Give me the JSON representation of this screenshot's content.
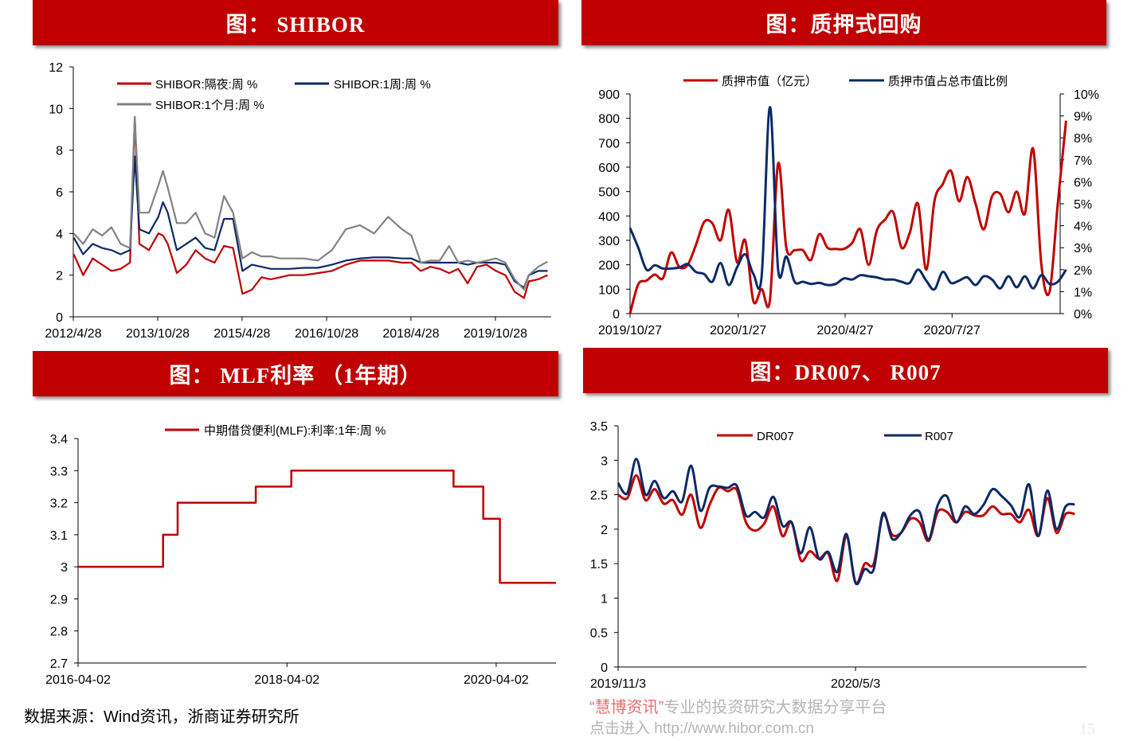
{
  "panels": {
    "shibor_title": "图： SHIBOR",
    "repo_title": "图：质押式回购",
    "mlf_title": "图： MLF利率 （1年期）",
    "dr_title": "图：DR007、 R007"
  },
  "footer": {
    "source": "数据来源：Wind资讯，浙商证券研究所",
    "watermark_brand": "“慧博资讯”",
    "watermark_slogan": "专业的投资研究大数据分享平台",
    "watermark_link": "点击进入 http://www.hibor.com.cn",
    "page_number": "15"
  },
  "colors": {
    "red": "#c00000",
    "navy": "#0c2a66",
    "gray": "#828282",
    "header": "#c00000"
  },
  "chart_data": [
    {
      "id": "shibor",
      "type": "line",
      "xlim": [
        "2012-04-28",
        "2020-10-24"
      ],
      "ylim": [
        0,
        12
      ],
      "yticks": [
        0,
        2,
        4,
        6,
        8,
        10,
        12
      ],
      "xticks": [
        "2012/4/28",
        "2013/10/28",
        "2015/4/28",
        "2016/10/28",
        "2018/4/28",
        "2019/10/28"
      ],
      "legend_position": "top-left",
      "grid": false,
      "x": [
        "2012-05",
        "2012-07",
        "2012-09",
        "2012-11",
        "2013-01",
        "2013-03",
        "2013-05",
        "2013-06",
        "2013-07",
        "2013-09",
        "2013-11",
        "2013-12",
        "2014-01",
        "2014-03",
        "2014-05",
        "2014-07",
        "2014-09",
        "2014-11",
        "2015-01",
        "2015-03",
        "2015-05",
        "2015-07",
        "2015-09",
        "2015-11",
        "2016-01",
        "2016-03",
        "2016-06",
        "2016-09",
        "2016-12",
        "2017-03",
        "2017-06",
        "2017-09",
        "2017-12",
        "2018-03",
        "2018-05",
        "2018-07",
        "2018-09",
        "2018-11",
        "2019-01",
        "2019-03",
        "2019-05",
        "2019-07",
        "2019-09",
        "2019-11",
        "2020-01",
        "2020-03",
        "2020-05",
        "2020-06",
        "2020-08",
        "2020-10"
      ],
      "series": [
        {
          "name": "SHIBOR:隔夜:周 %",
          "color": "#c00000",
          "values": [
            3.0,
            2.0,
            2.8,
            2.5,
            2.2,
            2.3,
            2.6,
            9.6,
            3.5,
            3.2,
            4.0,
            3.9,
            3.5,
            2.1,
            2.5,
            3.2,
            2.8,
            2.6,
            3.4,
            3.3,
            1.1,
            1.3,
            1.9,
            1.8,
            1.9,
            2.0,
            2.0,
            2.1,
            2.2,
            2.5,
            2.7,
            2.7,
            2.7,
            2.6,
            2.6,
            2.2,
            2.4,
            2.3,
            2.1,
            2.3,
            1.6,
            2.4,
            2.5,
            2.2,
            2.0,
            1.2,
            0.9,
            1.7,
            1.8,
            2.0
          ]
        },
        {
          "name": "SHIBOR:1周:周 %",
          "color": "#0c2a66",
          "values": [
            3.8,
            3.0,
            3.5,
            3.3,
            3.2,
            3.0,
            3.2,
            7.7,
            4.2,
            4.0,
            4.8,
            5.5,
            5.0,
            3.2,
            3.5,
            3.8,
            3.3,
            3.2,
            4.7,
            4.7,
            2.2,
            2.5,
            2.4,
            2.3,
            2.3,
            2.3,
            2.35,
            2.35,
            2.5,
            2.7,
            2.8,
            2.85,
            2.85,
            2.8,
            2.8,
            2.6,
            2.6,
            2.6,
            2.6,
            2.6,
            2.5,
            2.6,
            2.6,
            2.6,
            2.5,
            1.7,
            1.4,
            2.0,
            2.2,
            2.2
          ]
        },
        {
          "name": "SHIBOR:1个月:周 %",
          "color": "#828282",
          "values": [
            4.0,
            3.5,
            4.2,
            3.9,
            4.3,
            3.5,
            3.3,
            9.6,
            5.0,
            5.0,
            6.3,
            7.0,
            6.2,
            4.5,
            4.5,
            5.0,
            4.0,
            3.8,
            5.8,
            5.0,
            2.8,
            3.1,
            2.9,
            2.9,
            2.8,
            2.8,
            2.8,
            2.7,
            3.2,
            4.2,
            4.4,
            4.0,
            4.8,
            4.2,
            3.9,
            2.6,
            2.7,
            2.7,
            3.4,
            2.6,
            2.7,
            2.6,
            2.7,
            2.8,
            2.6,
            1.8,
            1.3,
            2.0,
            2.4,
            2.65
          ]
        }
      ]
    },
    {
      "id": "repo",
      "type": "line",
      "xlim": [
        "2019-10-27",
        "2020-10-27"
      ],
      "ylim": [
        0,
        900
      ],
      "ylim_right": [
        0,
        10
      ],
      "yticks": [
        0,
        100,
        200,
        300,
        400,
        500,
        600,
        700,
        800,
        900
      ],
      "yticks_right": [
        "0%",
        "1%",
        "2%",
        "3%",
        "4%",
        "5%",
        "6%",
        "7%",
        "8%",
        "9%",
        "10%"
      ],
      "xticks": [
        "2019/10/27",
        "2020/1/27",
        "2020/4/27",
        "2020/7/27"
      ],
      "legend_position": "top",
      "grid": false,
      "x": [
        "2019-10-27",
        "2019-11-03",
        "2019-11-10",
        "2019-11-17",
        "2019-11-24",
        "2019-12-01",
        "2019-12-08",
        "2019-12-15",
        "2019-12-22",
        "2019-12-29",
        "2020-01-05",
        "2020-01-12",
        "2020-01-19",
        "2020-01-26",
        "2020-02-02",
        "2020-02-09",
        "2020-02-16",
        "2020-02-23",
        "2020-03-01",
        "2020-03-08",
        "2020-03-15",
        "2020-03-22",
        "2020-03-29",
        "2020-04-05",
        "2020-04-12",
        "2020-04-19",
        "2020-04-26",
        "2020-05-03",
        "2020-05-10",
        "2020-05-17",
        "2020-05-24",
        "2020-05-31",
        "2020-06-07",
        "2020-06-14",
        "2020-06-21",
        "2020-06-28",
        "2020-07-05",
        "2020-07-12",
        "2020-07-19",
        "2020-07-26",
        "2020-08-02",
        "2020-08-09",
        "2020-08-16",
        "2020-08-23",
        "2020-08-30",
        "2020-09-06",
        "2020-09-13",
        "2020-09-20",
        "2020-09-27",
        "2020-10-04",
        "2020-10-11",
        "2020-10-18",
        "2020-10-25",
        "2020-11-01"
      ],
      "series": [
        {
          "name": "质押市值（亿元）",
          "axis": "left",
          "color": "#c00000",
          "values": [
            0,
            120,
            135,
            160,
            145,
            250,
            190,
            200,
            280,
            375,
            370,
            300,
            425,
            210,
            300,
            50,
            100,
            55,
            615,
            270,
            260,
            260,
            220,
            325,
            270,
            265,
            265,
            290,
            345,
            200,
            340,
            385,
            415,
            270,
            330,
            450,
            180,
            460,
            530,
            585,
            460,
            560,
            450,
            345,
            480,
            490,
            415,
            500,
            410,
            675,
            200,
            90,
            450,
            790
          ]
        },
        {
          "name": "质押市值占总市值比例",
          "axis": "right",
          "unit": "%",
          "color": "#0c2a66",
          "values": [
            3.9,
            3.0,
            2.0,
            2.2,
            2.05,
            2.05,
            2.1,
            2.25,
            1.9,
            1.8,
            1.45,
            2.3,
            1.3,
            2.1,
            2.7,
            1.8,
            1.7,
            9.4,
            2.0,
            2.6,
            1.45,
            1.45,
            1.35,
            1.4,
            1.3,
            1.35,
            1.6,
            1.55,
            1.75,
            1.7,
            1.65,
            1.55,
            1.55,
            1.45,
            1.4,
            2.0,
            1.5,
            1.1,
            1.9,
            1.4,
            1.5,
            1.65,
            1.3,
            1.7,
            1.55,
            1.15,
            1.7,
            1.2,
            1.7,
            1.15,
            1.75,
            1.35,
            1.45,
            2.0
          ]
        }
      ]
    },
    {
      "id": "mlf",
      "type": "line",
      "xlim": [
        "2016-04-02",
        "2020-10-28"
      ],
      "ylim": [
        2.7,
        3.4
      ],
      "yticks": [
        "2.7",
        "2.8",
        "2.9",
        "3",
        "3.1",
        "3.2",
        "3.3",
        "3.4"
      ],
      "xticks": [
        "2016-04-02",
        "2018-04-02",
        "2020-04-02"
      ],
      "legend_position": "top",
      "grid": false,
      "x": [
        "2016-04-02",
        "2017-01-24",
        "2017-01-24",
        "2017-03-16",
        "2017-03-16",
        "2017-12-14",
        "2017-12-14",
        "2018-04-17",
        "2018-04-17",
        "2019-11-05",
        "2019-11-05",
        "2020-02-17",
        "2020-02-17",
        "2020-04-15",
        "2020-04-15",
        "2020-10-28"
      ],
      "series": [
        {
          "name": "中期借贷便利(MLF):利率:1年:周 %",
          "color": "#c00000",
          "values": [
            3.0,
            3.0,
            3.1,
            3.1,
            3.2,
            3.2,
            3.25,
            3.25,
            3.3,
            3.3,
            3.25,
            3.25,
            3.15,
            3.15,
            2.95,
            2.95
          ]
        }
      ]
    },
    {
      "id": "dr007",
      "type": "line",
      "xlim": [
        "2019-11-03",
        "2020-10-27"
      ],
      "ylim": [
        0,
        3.5
      ],
      "yticks": [
        "0",
        "0.5",
        "1",
        "1.5",
        "2",
        "2.5",
        "3",
        "3.5"
      ],
      "xticks": [
        "2019/11/3",
        "2020/5/3"
      ],
      "legend_position": "top",
      "grid": false,
      "x": [
        "2019-11-03",
        "2019-11-10",
        "2019-11-17",
        "2019-11-24",
        "2019-12-01",
        "2019-12-08",
        "2019-12-15",
        "2019-12-22",
        "2019-12-29",
        "2020-01-05",
        "2020-01-12",
        "2020-01-19",
        "2020-01-26",
        "2020-02-02",
        "2020-02-09",
        "2020-02-16",
        "2020-02-23",
        "2020-03-01",
        "2020-03-08",
        "2020-03-15",
        "2020-03-22",
        "2020-03-29",
        "2020-04-05",
        "2020-04-12",
        "2020-04-19",
        "2020-04-26",
        "2020-05-03",
        "2020-05-10",
        "2020-05-17",
        "2020-05-24",
        "2020-05-31",
        "2020-06-07",
        "2020-06-14",
        "2020-06-21",
        "2020-06-28",
        "2020-07-05",
        "2020-07-12",
        "2020-07-19",
        "2020-07-26",
        "2020-08-02",
        "2020-08-09",
        "2020-08-16",
        "2020-08-23",
        "2020-08-30",
        "2020-09-06",
        "2020-09-13",
        "2020-09-20",
        "2020-09-27",
        "2020-10-04",
        "2020-10-11",
        "2020-10-18"
      ],
      "series": [
        {
          "name": "DR007",
          "color": "#c00000",
          "values": [
            2.5,
            2.45,
            2.78,
            2.42,
            2.58,
            2.37,
            2.42,
            2.21,
            2.5,
            2.02,
            2.35,
            2.6,
            2.55,
            2.57,
            2.1,
            1.98,
            2.08,
            2.33,
            1.9,
            2.1,
            1.55,
            1.68,
            1.57,
            1.65,
            1.25,
            1.9,
            1.22,
            1.5,
            1.5,
            2.2,
            1.92,
            1.95,
            2.15,
            2.1,
            1.83,
            2.25,
            2.25,
            2.1,
            2.25,
            2.2,
            2.2,
            2.33,
            2.22,
            2.22,
            2.1,
            2.28,
            1.9,
            2.45,
            1.95,
            2.22,
            2.22
          ]
        },
        {
          "name": "R007",
          "color": "#0c2a66",
          "values": [
            2.67,
            2.52,
            3.02,
            2.5,
            2.7,
            2.45,
            2.55,
            2.4,
            2.92,
            2.27,
            2.6,
            2.62,
            2.6,
            2.63,
            2.2,
            2.25,
            2.17,
            2.47,
            2.05,
            2.1,
            1.65,
            2.03,
            1.57,
            1.67,
            1.38,
            1.93,
            1.22,
            1.42,
            1.42,
            2.23,
            1.86,
            1.95,
            2.2,
            2.25,
            1.85,
            2.35,
            2.48,
            2.1,
            2.33,
            2.22,
            2.35,
            2.58,
            2.48,
            2.35,
            2.18,
            2.65,
            1.9,
            2.56,
            2.0,
            2.33,
            2.36
          ]
        }
      ]
    }
  ]
}
